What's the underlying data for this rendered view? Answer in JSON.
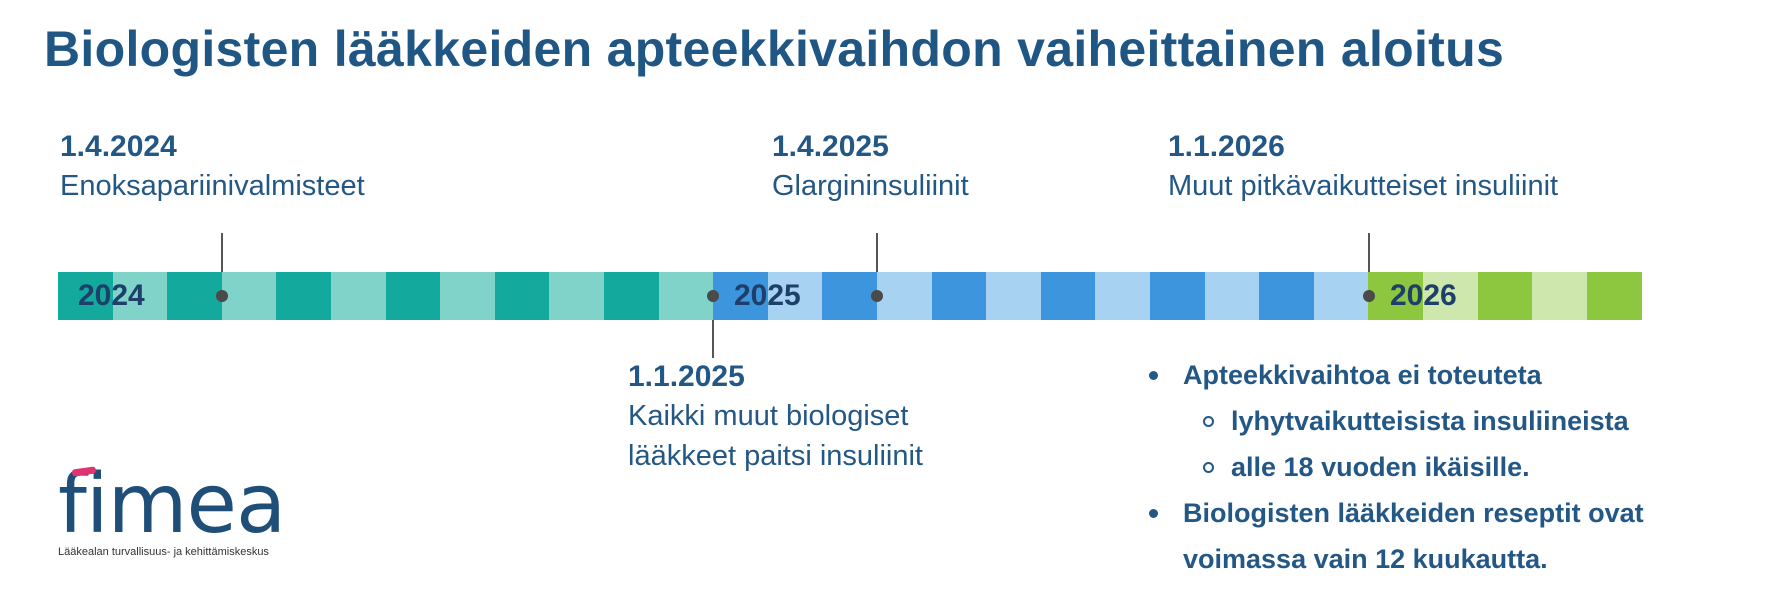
{
  "title": "Biologisten lääkkeiden apteekkivaihdon vaiheittainen aloitus",
  "colors": {
    "title": "#1f5683",
    "text": "#235785",
    "teal_dark": "#14a99d",
    "teal_light": "#7fd3c9",
    "blue_dark": "#3d95dd",
    "blue_light": "#a8d2f2",
    "green_dark": "#8dc63f",
    "green_light": "#cde7ad",
    "logo_accent": "#e0336f"
  },
  "timeline": {
    "years": [
      "2024",
      "2025",
      "2026"
    ],
    "events_above": [
      {
        "date": "1.4.2024",
        "description": "Enoksapariinivalmisteet"
      },
      {
        "date": "1.4.2025",
        "description": "Glargininsuliinit"
      },
      {
        "date": "1.1.2026",
        "description": "Muut pitkävaikutteiset insuliinit"
      }
    ],
    "events_below": [
      {
        "date": "1.1.2025",
        "description_line1": "Kaikki muut biologiset",
        "description_line2": "lääkkeet paitsi insuliinit"
      }
    ]
  },
  "notes": {
    "bullet1": "Apteekkivaihtoa ei toteuteta",
    "sub1": "lyhytvaikutteisista insuliineista",
    "sub2": "alle 18 vuoden ikäisille.",
    "bullet2_line1": "Biologisten lääkkeiden reseptit ovat",
    "bullet2_line2": "voimassa vain 12 kuukautta."
  },
  "logo": {
    "name": "fimea",
    "tagline": "Lääkealan turvallisuus- ja kehittämiskeskus"
  }
}
